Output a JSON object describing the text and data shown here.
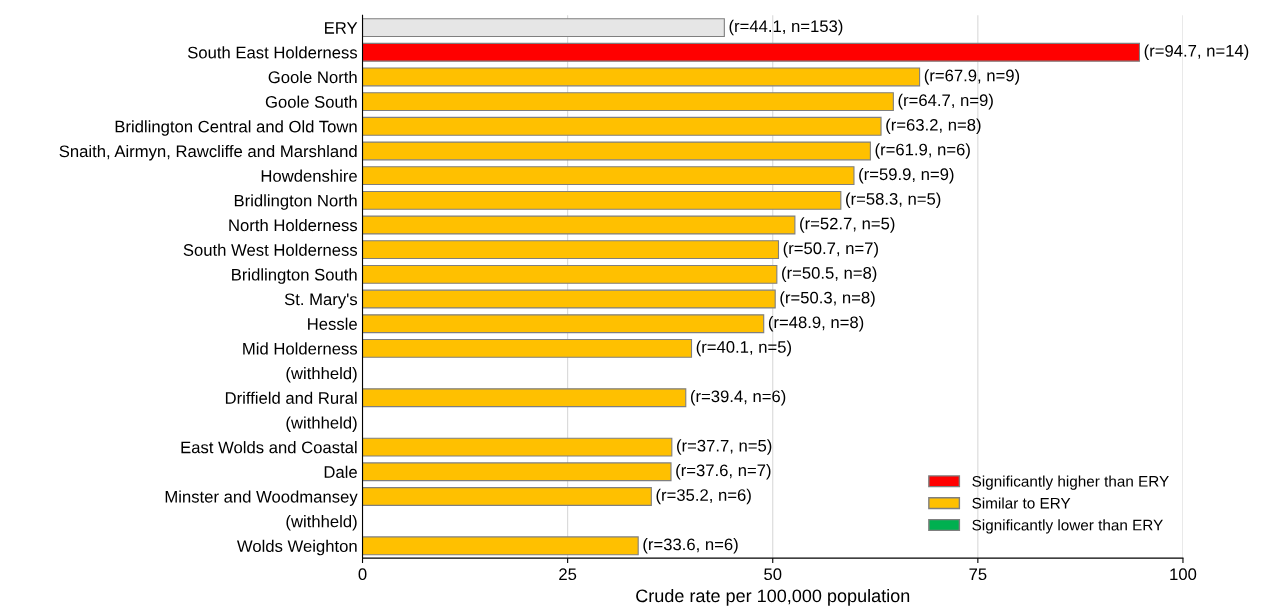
{
  "chart_data": {
    "type": "bar",
    "orientation": "horizontal",
    "xlabel": "Crude rate per 100,000 population",
    "categories": [
      "ERY",
      "South East Holderness",
      "Goole North",
      "Goole South",
      "Bridlington Central and Old Town",
      "Snaith, Airmyn, Rawcliffe and Marshland",
      "Howdenshire",
      "Bridlington North",
      "North Holderness",
      "South West Holderness",
      "Bridlington South",
      "St. Mary's",
      "Hessle",
      "Mid Holderness",
      "(withheld)",
      "Driffield and Rural",
      "(withheld)",
      "East Wolds and Coastal",
      "Dale",
      "Minster and Woodmansey",
      "(withheld)",
      "Wolds Weighton"
    ],
    "series": [
      {
        "color": "#e6e6e6",
        "values": [
          44.1,
          null,
          null,
          null,
          null,
          null,
          null,
          null,
          null,
          null,
          null,
          null,
          null,
          null,
          null,
          null,
          null,
          null,
          null,
          null,
          null,
          null
        ],
        "value_labels": [
          "(r=44.1, n=153)",
          null,
          null,
          null,
          null,
          null,
          null,
          null,
          null,
          null,
          null,
          null,
          null,
          null,
          null,
          null,
          null,
          null,
          null,
          null,
          null,
          null
        ]
      },
      {
        "name": "Significantly higher than ERY",
        "color": "#ff0000",
        "values": [
          null,
          94.7,
          null,
          null,
          null,
          null,
          null,
          null,
          null,
          null,
          null,
          null,
          null,
          null,
          null,
          null,
          null,
          null,
          null,
          null,
          null,
          null
        ],
        "value_labels": [
          null,
          "(r=94.7, n=14)",
          null,
          null,
          null,
          null,
          null,
          null,
          null,
          null,
          null,
          null,
          null,
          null,
          null,
          null,
          null,
          null,
          null,
          null,
          null,
          null
        ]
      },
      {
        "name": "Similar to ERY",
        "color": "#ffc000",
        "values": [
          null,
          null,
          67.9,
          64.7,
          63.2,
          61.9,
          59.9,
          58.3,
          52.7,
          50.7,
          50.5,
          50.3,
          48.9,
          40.1,
          null,
          39.4,
          null,
          37.7,
          37.6,
          35.2,
          null,
          33.6
        ],
        "value_labels": [
          null,
          null,
          "(r=67.9, n=9)",
          "(r=64.7, n=9)",
          "(r=63.2, n=8)",
          "(r=61.9, n=6)",
          "(r=59.9, n=9)",
          "(r=58.3, n=5)",
          "(r=52.7, n=5)",
          "(r=50.7, n=7)",
          "(r=50.5, n=8)",
          "(r=50.3, n=8)",
          "(r=48.9, n=8)",
          "(r=40.1, n=5)",
          null,
          "(r=39.4, n=6)",
          null,
          "(r=37.7, n=5)",
          "(r=37.6, n=7)",
          "(r=35.2, n=6)",
          null,
          "(r=33.6, n=6)"
        ]
      },
      {
        "name": "Significantly lower than ERY",
        "color": "#00b050",
        "values": [
          null,
          null,
          null,
          null,
          null,
          null,
          null,
          null,
          null,
          null,
          null,
          null,
          null,
          null,
          null,
          null,
          null,
          null,
          null,
          null,
          null,
          null
        ]
      }
    ],
    "xlim": [
      0,
      100
    ],
    "xticks": [
      0,
      25,
      50,
      75,
      100
    ],
    "grid": "x",
    "legend": "bottom right"
  }
}
